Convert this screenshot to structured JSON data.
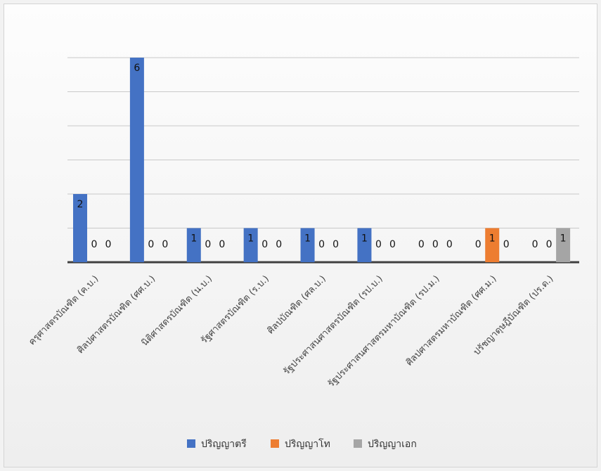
{
  "chart_data": {
    "type": "bar",
    "categories": [
      "ครุศาสตรบัณฑิต (ค.บ.)",
      "ศิลปศาสตรบัณฑิต (ศศ.บ.)",
      "นิติศาสตรบัณฑิต (น.บ.)",
      "รัฐศาสตรบัณฑิต (ร.บ.)",
      "ศิลปบัณฑิต (ศล.บ.)",
      "รัฐประศาสนศาสตรบัณฑิต (รป.บ.)",
      "รัฐประศาสนศาสตรมหาบัณฑิต (รป.ม.)",
      "ศิลปศาสตรมหาบัณฑิต (ศศ.ม.)",
      "ปรัชญาดุษฎีบัณฑิต (ปร.ด.)"
    ],
    "series": [
      {
        "name": "ปริญญาตรี",
        "color": "#4472c4",
        "values": [
          2,
          6,
          1,
          1,
          1,
          1,
          0,
          0,
          0
        ]
      },
      {
        "name": "ปริญญาโท",
        "color": "#ed7d31",
        "values": [
          0,
          0,
          0,
          0,
          0,
          0,
          0,
          1,
          0
        ]
      },
      {
        "name": "ปริญญาเอก",
        "color": "#a5a5a5",
        "values": [
          0,
          0,
          0,
          0,
          0,
          0,
          0,
          0,
          1
        ]
      }
    ],
    "ylim": [
      0,
      6
    ],
    "grid": true,
    "legend_position": "bottom",
    "data_labels": true
  }
}
